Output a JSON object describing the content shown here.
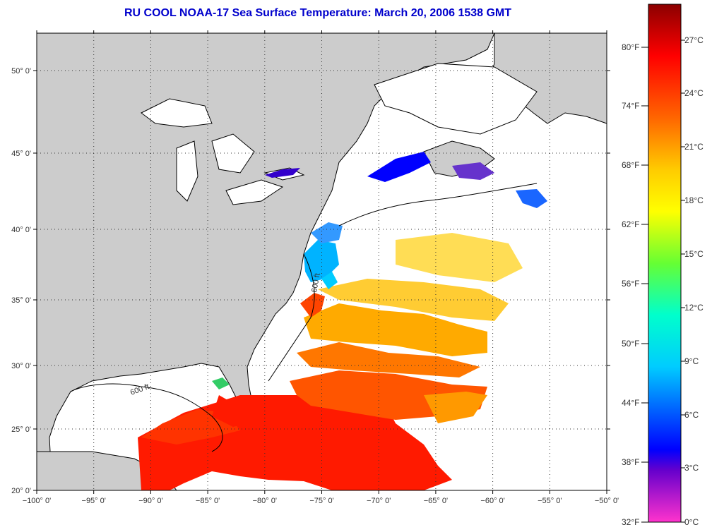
{
  "title": "RU COOL  NOAA-17  Sea Surface Temperature:  March 20, 2006 1538 GMT",
  "map": {
    "lon_ticks": [
      "−100° 0'",
      "−95° 0'",
      "−90° 0'",
      "−85° 0'",
      "−80° 0'",
      "−75° 0'",
      "−70° 0'",
      "−65° 0'",
      "−60° 0'",
      "−55° 0'",
      "−50° 0'"
    ],
    "lat_ticks": [
      "20° 0'",
      "25° 0'",
      "30° 0'",
      "35° 0'",
      "40° 0'",
      "45° 0'",
      "50° 0'"
    ],
    "contour_label": "600 ft",
    "land_color": "#cccccc",
    "cloud_color": "#ffffff",
    "grid": "dotted"
  },
  "colorbar": {
    "fahrenheit_labels": [
      "80°F",
      "74°F",
      "68°F",
      "62°F",
      "56°F",
      "50°F",
      "44°F",
      "38°F",
      "32°F"
    ],
    "celsius_labels": [
      "27°C",
      "24°C",
      "21°C",
      "18°C",
      "15°C",
      "12°C",
      "9°C",
      "6°C",
      "3°C",
      "0°C"
    ],
    "colors": [
      "#8b0000",
      "#ff0000",
      "#ff6600",
      "#ffcc00",
      "#ffff00",
      "#66ff33",
      "#00ffcc",
      "#00ccff",
      "#0066ff",
      "#0000ff",
      "#6600cc",
      "#ff33cc"
    ]
  }
}
